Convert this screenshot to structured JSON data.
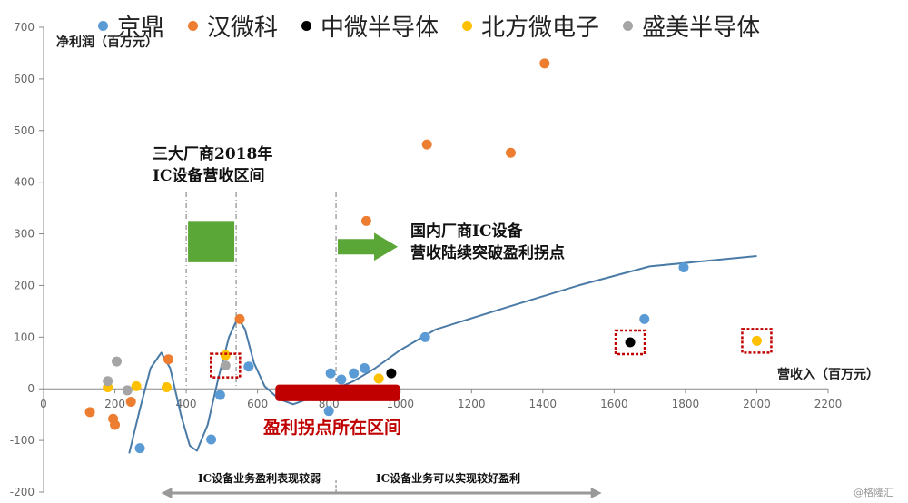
{
  "chart_data": {
    "type": "scatter",
    "xlabel": "营收入（百万元）",
    "ylabel": "净利润（百万元）",
    "xlim": [
      0,
      2200
    ],
    "ylim": [
      -200,
      700
    ],
    "x_ticks": [
      "0",
      "200",
      "400",
      "600",
      "800",
      "1000",
      "1200",
      "1400",
      "1600",
      "1800",
      "2000",
      "2200"
    ],
    "y_ticks": [
      "-200",
      "-100",
      "0",
      "100",
      "200",
      "300",
      "400",
      "500",
      "600",
      "700"
    ],
    "grid": false,
    "legend_position": "top",
    "series": [
      {
        "name": "京鼎",
        "color": "#5b9bd5",
        "points": [
          [
            270,
            -115
          ],
          [
            470,
            -98
          ],
          [
            495,
            -12
          ],
          [
            575,
            43
          ],
          [
            800,
            -43
          ],
          [
            805,
            30
          ],
          [
            835,
            18
          ],
          [
            870,
            30
          ],
          [
            900,
            40
          ],
          [
            1070,
            100
          ],
          [
            1685,
            135
          ],
          [
            1795,
            235
          ]
        ]
      },
      {
        "name": "汉微科",
        "color": "#ed7d31",
        "points": [
          [
            130,
            -45
          ],
          [
            195,
            -58
          ],
          [
            200,
            -70
          ],
          [
            245,
            -25
          ],
          [
            350,
            57
          ],
          [
            550,
            135
          ],
          [
            905,
            325
          ],
          [
            1075,
            473
          ],
          [
            1310,
            457
          ],
          [
            1405,
            630
          ]
        ]
      },
      {
        "name": "中微半导体",
        "color": "#000000",
        "points": [
          [
            975,
            30
          ],
          [
            1645,
            90
          ]
        ]
      },
      {
        "name": "北方微电子",
        "color": "#ffc000",
        "points": [
          [
            180,
            3
          ],
          [
            260,
            5
          ],
          [
            345,
            3
          ],
          [
            510,
            65
          ],
          [
            940,
            20
          ],
          [
            2000,
            93
          ]
        ]
      },
      {
        "name": "盛美半导体",
        "color": "#a5a5a5",
        "points": [
          [
            180,
            15
          ],
          [
            205,
            53
          ],
          [
            235,
            -3
          ],
          [
            510,
            45
          ]
        ]
      }
    ],
    "trend_line": [
      [
        240,
        -125
      ],
      [
        270,
        -40
      ],
      [
        300,
        40
      ],
      [
        330,
        70
      ],
      [
        355,
        40
      ],
      [
        385,
        -50
      ],
      [
        410,
        -110
      ],
      [
        430,
        -120
      ],
      [
        460,
        -70
      ],
      [
        490,
        20
      ],
      [
        520,
        100
      ],
      [
        545,
        138
      ],
      [
        565,
        115
      ],
      [
        590,
        50
      ],
      [
        620,
        5
      ],
      [
        660,
        -20
      ],
      [
        700,
        -30
      ],
      [
        760,
        -15
      ],
      [
        820,
        0
      ],
      [
        870,
        15
      ],
      [
        930,
        40
      ],
      [
        1000,
        75
      ],
      [
        1100,
        115
      ],
      [
        1300,
        158
      ],
      [
        1500,
        200
      ],
      [
        1700,
        237
      ],
      [
        2000,
        257
      ]
    ],
    "annotations": {
      "range_2018": [
        "三大厂商2018年",
        "IC设备营收区间"
      ],
      "breakthrough": [
        "国内厂商IC设备",
        "营收陆续突破盈利拐点"
      ],
      "inflection_zone": "盈利拐点所在区间",
      "weak_zone": "IC设备业务盈利表现较弱",
      "good_zone": "IC设备业务可以实现较好盈利"
    },
    "zones": {
      "inflection_x": [
        650,
        1000
      ],
      "weak_x": [
        350,
        820
      ],
      "good_x": [
        820,
        1550
      ],
      "range_2018_x": [
        400,
        540
      ],
      "dashed_x": [
        400,
        540,
        820
      ]
    },
    "highlighted_points": [
      [
        510,
        45
      ],
      [
        1645,
        90
      ],
      [
        2000,
        93
      ]
    ],
    "colors": {
      "trend": "#4a7ba7",
      "arrow": "#5aa636",
      "zone": "#c00000",
      "boxes": "#c00000",
      "axis": "#888888"
    }
  },
  "watermark": "@格隆汇"
}
